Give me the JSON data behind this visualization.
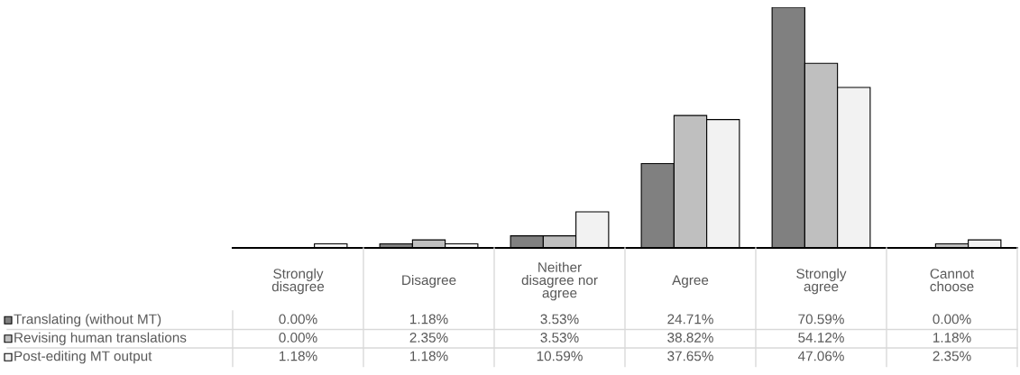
{
  "chart_data": {
    "type": "bar",
    "categories": [
      "Strongly\ndisagree",
      "Disagree",
      "Neither\ndisagree nor\nagree",
      "Agree",
      "Strongly\nagree",
      "Cannot\nchoose"
    ],
    "series": [
      {
        "name": "Translating (without MT)",
        "color": "#808080",
        "values": [
          0.0,
          1.18,
          3.53,
          24.71,
          70.59,
          0.0
        ],
        "value_labels": [
          "0.00%",
          "1.18%",
          "3.53%",
          "24.71%",
          "70.59%",
          "0.00%"
        ]
      },
      {
        "name": "Revising human translations",
        "color": "#bfbfbf",
        "values": [
          0.0,
          2.35,
          3.53,
          38.82,
          54.12,
          1.18
        ],
        "value_labels": [
          "0.00%",
          "2.35%",
          "3.53%",
          "38.82%",
          "54.12%",
          "1.18%"
        ]
      },
      {
        "name": "Post-editing MT output",
        "color": "#f2f2f2",
        "values": [
          1.18,
          1.18,
          10.59,
          37.65,
          47.06,
          2.35
        ],
        "value_labels": [
          "1.18%",
          "1.18%",
          "10.59%",
          "37.65%",
          "47.06%",
          "2.35%"
        ]
      }
    ],
    "legend": "bottom left"
  }
}
